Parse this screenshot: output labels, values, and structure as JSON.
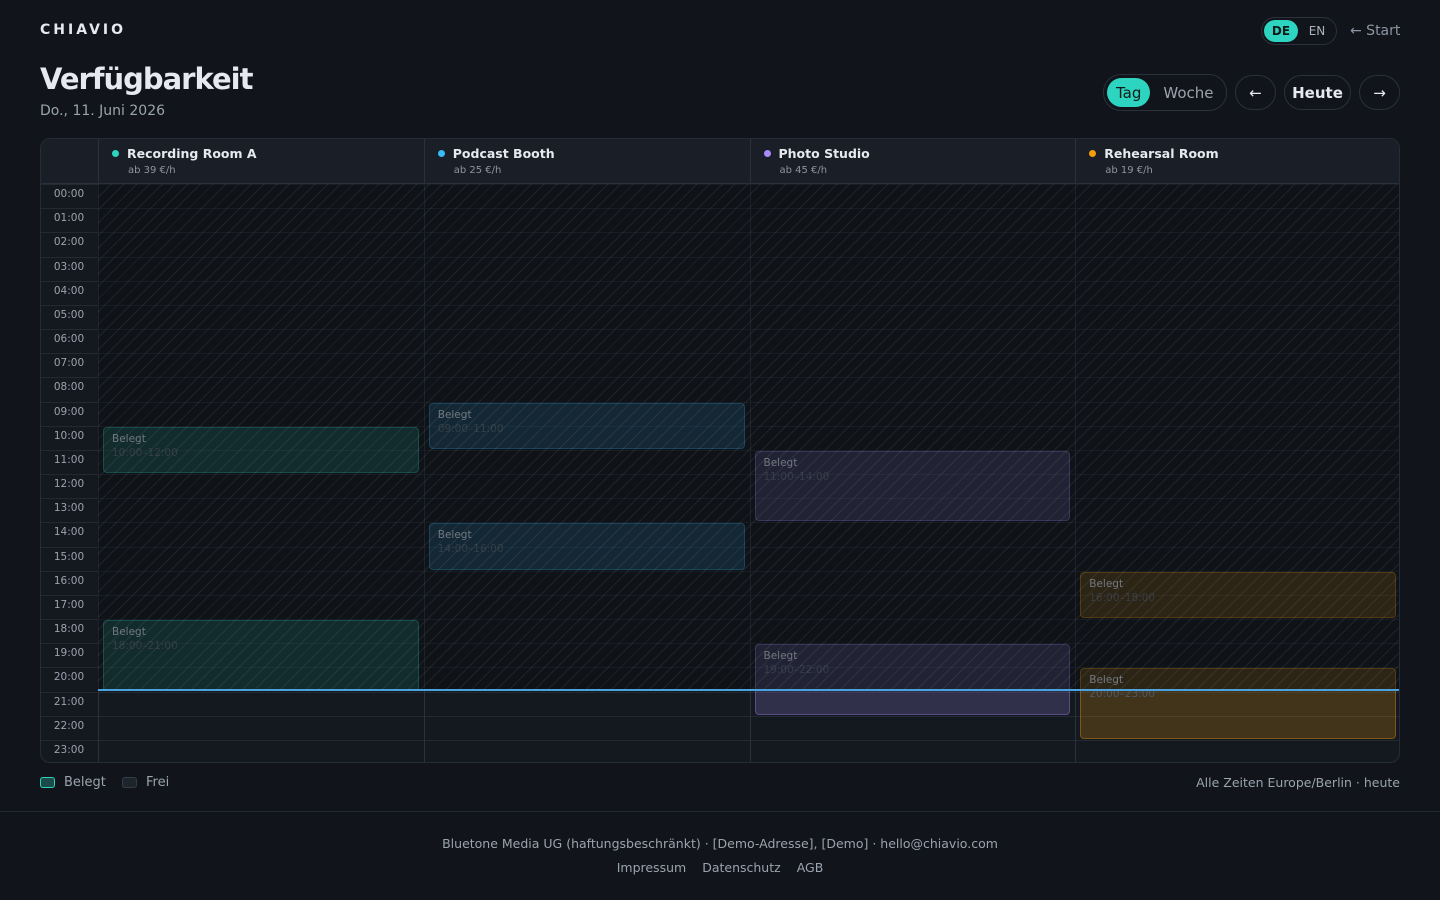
{
  "header": {
    "brand": "CHIAVIO",
    "languages": [
      "DE",
      "EN"
    ],
    "active_language": "DE",
    "start_link": "← Start"
  },
  "title": "Verfügbarkeit",
  "date": "Do., 11. Juni 2026",
  "views": [
    "Tag",
    "Woche"
  ],
  "active_view": "Tag",
  "nav": {
    "prev": "←",
    "today": "Heute",
    "next": "→"
  },
  "hours": [
    "00:00",
    "01:00",
    "02:00",
    "03:00",
    "04:00",
    "05:00",
    "06:00",
    "07:00",
    "08:00",
    "09:00",
    "10:00",
    "11:00",
    "12:00",
    "13:00",
    "14:00",
    "15:00",
    "16:00",
    "17:00",
    "18:00",
    "19:00",
    "20:00",
    "21:00",
    "22:00",
    "23:00"
  ],
  "rooms": [
    {
      "name": "Recording Room A",
      "price": "ab 39 €/h",
      "color": "#2dd4bf",
      "bookings": [
        {
          "label": "Belegt",
          "time": "10:00–12:00"
        },
        {
          "label": "Belegt",
          "time": "18:00–21:00"
        }
      ]
    },
    {
      "name": "Podcast Booth",
      "price": "ab 25 €/h",
      "color": "#38bdf8",
      "bookings": [
        {
          "label": "Belegt",
          "time": "09:00–11:00"
        },
        {
          "label": "Belegt",
          "time": "14:00–16:00"
        }
      ]
    },
    {
      "name": "Photo Studio",
      "price": "ab 45 €/h",
      "color": "#a78bfa",
      "bookings": [
        {
          "label": "Belegt",
          "time": "11:00–14:00"
        },
        {
          "label": "Belegt",
          "time": "19:00–22:00"
        }
      ]
    },
    {
      "name": "Rehearsal Room",
      "price": "ab 19 €/h",
      "color": "#f59e0b",
      "bookings": [
        {
          "label": "Belegt",
          "time": "16:00–18:00"
        },
        {
          "label": "Belegt",
          "time": "20:00–23:00"
        }
      ]
    }
  ],
  "legend": [
    "Belegt",
    "Frei"
  ],
  "timezone_note": "Alle Zeiten Europe/Berlin · heute",
  "footer": {
    "imprint_line": "Bluetone Media UG (haftungsbeschränkt) · [Demo-Adresse], [Demo] · hello@chiavio.com",
    "links": [
      "Impressum",
      "Datenschutz",
      "AGB"
    ]
  }
}
